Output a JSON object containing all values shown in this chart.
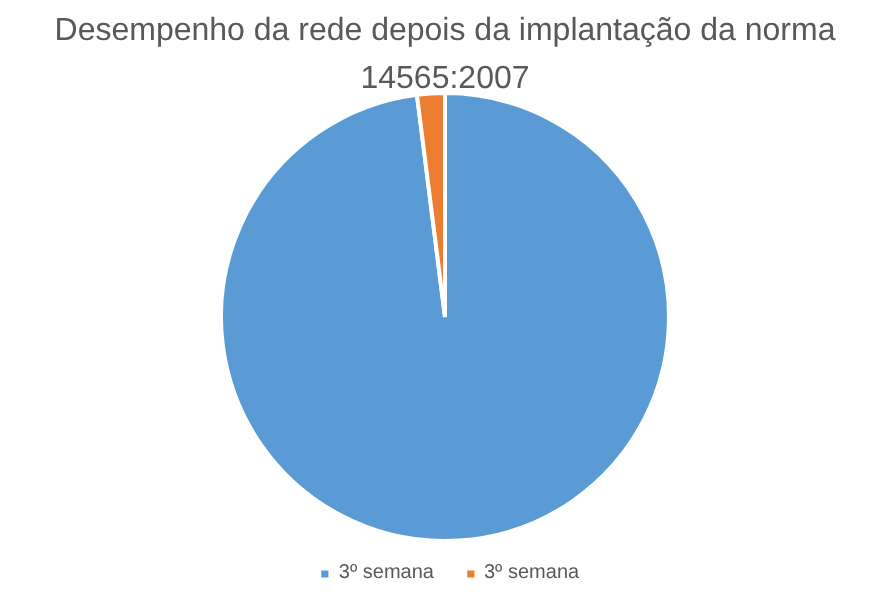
{
  "chart_data": {
    "type": "pie",
    "title": "Desempenho da rede depois da implantação da norma 14565:2007",
    "categories": [
      "3º semana",
      "3º semana"
    ],
    "values": [
      98,
      2
    ],
    "colors": [
      "#5b9bd5",
      "#ed7d31"
    ],
    "legend": "bottom"
  }
}
